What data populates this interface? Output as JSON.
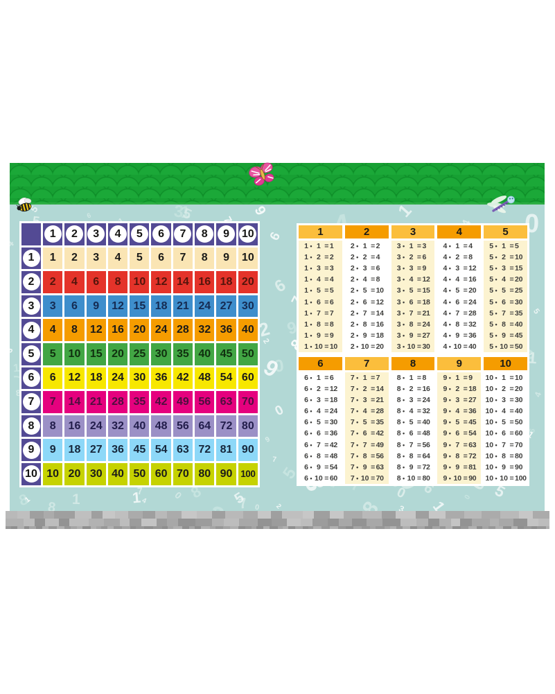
{
  "poster": {
    "kind": "multiplication-table-poster",
    "decor_icons": [
      "bee-icon",
      "butterfly-icon",
      "dragonfly-icon"
    ]
  },
  "pythagorean_grid": {
    "column_headers": [
      1,
      2,
      3,
      4,
      5,
      6,
      7,
      8,
      9,
      10
    ],
    "rows": [
      {
        "label": 1,
        "bg": "#FAE5B4",
        "fg": "#1B1B19",
        "values": [
          1,
          2,
          3,
          4,
          5,
          6,
          7,
          8,
          9,
          10
        ]
      },
      {
        "label": 2,
        "bg": "#E4332A",
        "fg": "#53150C",
        "values": [
          2,
          4,
          6,
          8,
          10,
          12,
          14,
          16,
          18,
          20
        ]
      },
      {
        "label": 3,
        "bg": "#3E8ECC",
        "fg": "#152B52",
        "values": [
          3,
          6,
          9,
          12,
          15,
          18,
          21,
          24,
          27,
          30
        ]
      },
      {
        "label": 4,
        "bg": "#F59C00",
        "fg": "#1B1B19",
        "values": [
          4,
          8,
          12,
          16,
          20,
          24,
          28,
          32,
          36,
          40
        ]
      },
      {
        "label": 5,
        "bg": "#42A644",
        "fg": "#10300F",
        "values": [
          5,
          10,
          15,
          20,
          25,
          30,
          35,
          40,
          45,
          50
        ]
      },
      {
        "label": 6,
        "bg": "#F7E700",
        "fg": "#1B1B19",
        "values": [
          6,
          12,
          18,
          24,
          30,
          36,
          42,
          48,
          54,
          60
        ]
      },
      {
        "label": 7,
        "bg": "#E5017E",
        "fg": "#4D0F3E",
        "values": [
          7,
          14,
          21,
          28,
          35,
          42,
          49,
          56,
          63,
          70
        ]
      },
      {
        "label": 8,
        "bg": "#9B90C6",
        "fg": "#221D4B",
        "values": [
          8,
          16,
          24,
          32,
          40,
          48,
          56,
          64,
          72,
          80
        ]
      },
      {
        "label": 9,
        "bg": "#8DD8F8",
        "fg": "#16273B",
        "values": [
          9,
          18,
          27,
          36,
          45,
          54,
          63,
          72,
          81,
          90
        ]
      },
      {
        "label": 10,
        "bg": "#C6D201",
        "fg": "#1B1B19",
        "values": [
          10,
          20,
          30,
          40,
          50,
          60,
          70,
          80,
          90,
          100
        ]
      }
    ]
  },
  "equation_tables": {
    "operator": "•",
    "equals": "=",
    "multipliers": [
      1,
      2,
      3,
      4,
      5,
      6,
      7,
      8,
      9,
      10
    ],
    "blocks": [
      {
        "columns": [
          {
            "n": 1,
            "header_tone": "light",
            "body_tone": "cream",
            "products": [
              1,
              2,
              3,
              4,
              5,
              6,
              7,
              8,
              9,
              10
            ]
          },
          {
            "n": 2,
            "header_tone": "dark",
            "body_tone": "white",
            "products": [
              2,
              4,
              6,
              8,
              10,
              12,
              14,
              16,
              18,
              20
            ]
          },
          {
            "n": 3,
            "header_tone": "light",
            "body_tone": "cream",
            "products": [
              3,
              6,
              9,
              12,
              15,
              18,
              21,
              24,
              27,
              30
            ]
          },
          {
            "n": 4,
            "header_tone": "dark",
            "body_tone": "white",
            "products": [
              4,
              8,
              12,
              16,
              20,
              24,
              28,
              32,
              36,
              40
            ]
          },
          {
            "n": 5,
            "header_tone": "light",
            "body_tone": "cream",
            "products": [
              5,
              10,
              15,
              20,
              25,
              30,
              35,
              40,
              45,
              50
            ]
          }
        ]
      },
      {
        "columns": [
          {
            "n": 6,
            "header_tone": "dark",
            "body_tone": "white",
            "products": [
              6,
              12,
              18,
              24,
              30,
              36,
              42,
              48,
              54,
              60
            ]
          },
          {
            "n": 7,
            "header_tone": "light",
            "body_tone": "cream",
            "products": [
              7,
              14,
              21,
              28,
              35,
              42,
              49,
              56,
              63,
              70
            ]
          },
          {
            "n": 8,
            "header_tone": "dark",
            "body_tone": "white",
            "products": [
              8,
              16,
              24,
              32,
              40,
              48,
              56,
              64,
              72,
              80
            ]
          },
          {
            "n": 9,
            "header_tone": "light",
            "body_tone": "cream",
            "products": [
              9,
              18,
              27,
              36,
              45,
              54,
              63,
              72,
              81,
              90
            ]
          },
          {
            "n": 10,
            "header_tone": "dark",
            "body_tone": "white",
            "products": [
              10,
              20,
              30,
              40,
              50,
              60,
              70,
              80,
              90,
              100
            ]
          }
        ]
      }
    ]
  },
  "palette": {
    "grid_header_purple": "#534A94",
    "table_header_light": "#FBBE3C",
    "table_header_dark": "#F59C00",
    "table_body_cream": "#FCF3D0",
    "sky_teal": "#B2D8D5",
    "roof_green": "#17A033",
    "roof_rim_green": "#0D8B27",
    "digit_tones": [
      "rgba(255,255,255,0.92)",
      "#DCEEEB",
      "#C9E6E2"
    ],
    "brick_grays_top": [
      "#C7C7C7",
      "#B9B9B9",
      "#ABABAB",
      "#BFBFBF",
      "#9F9F9F"
    ],
    "brick_grays_mid": [
      "#BDBDBD",
      "#A8A8A8",
      "#939393",
      "#C4C4C4",
      "#9C9C9C",
      "#B2B2B2"
    ],
    "brick_grays_base": [
      "#A5A5A5",
      "#989898",
      "#B0B0B0",
      "#8F8F8F"
    ]
  }
}
